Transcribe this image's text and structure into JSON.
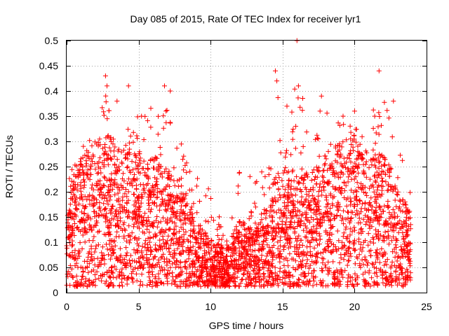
{
  "chart_data": {
    "type": "scatter",
    "title": "Day 085 of 2015, Rate Of TEC Index for receiver lyr1",
    "xlabel": "GPS time / hours",
    "ylabel": "ROTI / TECUs",
    "xlim": [
      0,
      25
    ],
    "ylim": [
      0,
      0.5
    ],
    "xticks": [
      0,
      5,
      10,
      15,
      20,
      25
    ],
    "xtick_labels": [
      "0",
      "5",
      "10",
      "15",
      "20",
      "25"
    ],
    "yticks": [
      0,
      0.05,
      0.1,
      0.15,
      0.2,
      0.25,
      0.3,
      0.35,
      0.4,
      0.45,
      0.5
    ],
    "ytick_labels": [
      "0",
      "0.05",
      "0.1",
      "0.15",
      "0.2",
      "0.25",
      "0.3",
      "0.35",
      "0.4",
      "0.45",
      "0.5"
    ],
    "grid": true,
    "marker": "+",
    "color": "#ff0000",
    "series": [
      {
        "name": "lyr1",
        "x_range_observed": [
          0,
          23.9
        ],
        "envelope_x": [
          0,
          1,
          2,
          2.7,
          3.5,
          4.5,
          5.5,
          6.5,
          7.2,
          8,
          9,
          10,
          11,
          12,
          13,
          14,
          14.5,
          15.5,
          16,
          17,
          18,
          19,
          20,
          21,
          21.7,
          22.5,
          23,
          23.9
        ],
        "envelope_max": [
          0.25,
          0.3,
          0.33,
          0.43,
          0.3,
          0.41,
          0.38,
          0.41,
          0.4,
          0.32,
          0.25,
          0.22,
          0.12,
          0.28,
          0.25,
          0.3,
          0.44,
          0.35,
          0.5,
          0.3,
          0.39,
          0.35,
          0.36,
          0.35,
          0.44,
          0.38,
          0.31,
          0.22
        ],
        "typical_mean": [
          0.08,
          0.14,
          0.15,
          0.16,
          0.15,
          0.15,
          0.13,
          0.14,
          0.12,
          0.1,
          0.07,
          0.05,
          0.04,
          0.07,
          0.06,
          0.09,
          0.12,
          0.12,
          0.12,
          0.12,
          0.14,
          0.15,
          0.16,
          0.14,
          0.14,
          0.13,
          0.1,
          0.08
        ],
        "points": [
          [
            2.7,
            0.43
          ],
          [
            2.8,
            0.41
          ],
          [
            4.3,
            0.41
          ],
          [
            6.8,
            0.41
          ],
          [
            7.2,
            0.4
          ],
          [
            14.5,
            0.44
          ],
          [
            14.6,
            0.42
          ],
          [
            16.0,
            0.5
          ],
          [
            16.1,
            0.41
          ],
          [
            17.7,
            0.39
          ],
          [
            21.7,
            0.44
          ],
          [
            22.7,
            0.38
          ],
          [
            15.3,
            0.37
          ],
          [
            17.6,
            0.36
          ],
          [
            19.2,
            0.35
          ],
          [
            20.0,
            0.36
          ],
          [
            21.4,
            0.35
          ],
          [
            5.2,
            0.35
          ],
          [
            6.9,
            0.36
          ],
          [
            3.5,
            0.38
          ]
        ]
      }
    ]
  }
}
